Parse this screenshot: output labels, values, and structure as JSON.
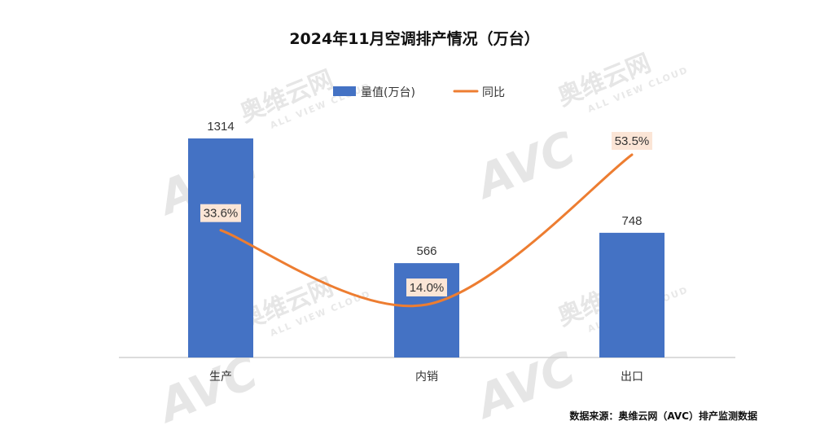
{
  "watermark": {
    "brand": "奥维云网",
    "subtitle": "ALL VIEW CLOUD",
    "logo": "AVC"
  },
  "source_text": "数据来源：奥维云网（AVC）排产监测数据",
  "chart_data": {
    "type": "bar+line",
    "title": "2024年11月空调排产情况（万台）",
    "categories": [
      "生产",
      "内销",
      "出口"
    ],
    "series": [
      {
        "name": "量值(万台)",
        "type": "bar",
        "color": "#4472C4",
        "values": [
          1314,
          566,
          748
        ],
        "labels": [
          "1314",
          "566",
          "748"
        ]
      },
      {
        "name": "同比",
        "type": "line",
        "color": "#ED7D31",
        "smooth": true,
        "values": [
          33.6,
          14.0,
          53.5
        ],
        "labels": [
          "33.6%",
          "14.0%",
          "53.5%"
        ]
      }
    ],
    "legend_position": "top-center",
    "grid": false
  }
}
